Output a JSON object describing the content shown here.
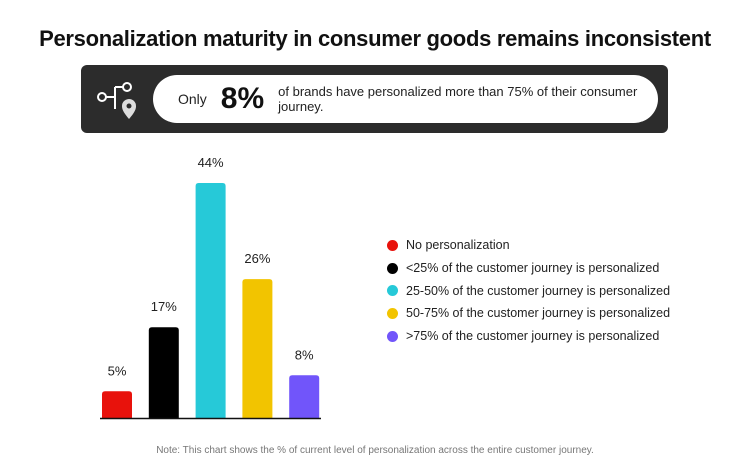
{
  "title": "Personalization maturity in consumer goods remains inconsistent",
  "banner": {
    "icon": "workflow-location-icon",
    "prefix": "Only",
    "highlight": "8%",
    "text": "of brands have personalized more than 75% of their consumer journey."
  },
  "chart_data": {
    "type": "bar",
    "categories": [
      "No personalization",
      "<25% of the customer journey is personalized",
      "25-50% of the customer journey is personalized",
      "50-75% of the customer journey is personalized",
      ">75% of the customer journey is personalized"
    ],
    "values": [
      5,
      17,
      44,
      26,
      8
    ],
    "data_labels": [
      "5%",
      "17%",
      "44%",
      "26%",
      "8%"
    ],
    "colors": [
      "#e8120c",
      "#000000",
      "#26c9d8",
      "#f2c400",
      "#7155fa"
    ],
    "grid": false,
    "legend": "right"
  },
  "note": "Note: This chart shows the % of current level of personalization across the entire customer journey."
}
